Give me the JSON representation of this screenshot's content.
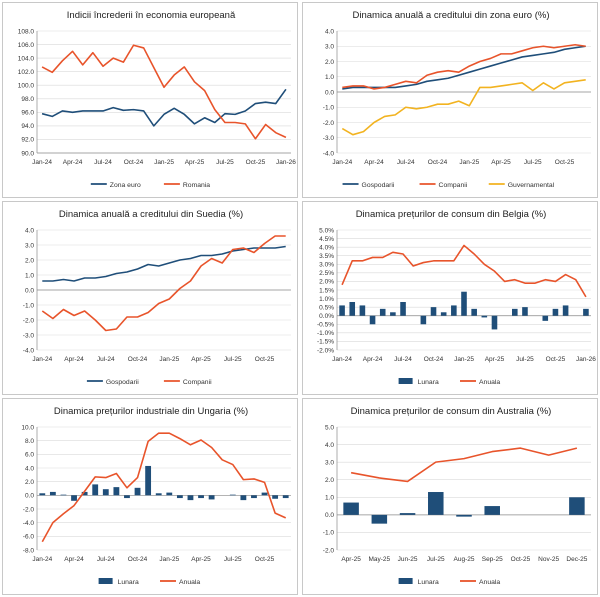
{
  "colors": {
    "navy": "#1f4e79",
    "orange": "#e8542b",
    "gold": "#f2b320",
    "grid": "#d9d9d9",
    "axis": "#8c8c8c"
  },
  "chart_data": [
    {
      "id": "c1",
      "type": "line",
      "title": "Indicii încrederii în economia europeană",
      "ylim": [
        90,
        108
      ],
      "yticks": [
        90,
        92,
        94,
        96,
        98,
        100,
        102,
        104,
        106,
        108
      ],
      "ydec": 1,
      "categories": [
        "Jan-24",
        "Feb-24",
        "Mar-24",
        "Apr-24",
        "May-24",
        "Jun-24",
        "Jul-24",
        "Aug-24",
        "Sep-24",
        "Oct-24",
        "Nov-24",
        "Dec-24",
        "Jan-25",
        "Feb-25",
        "Mar-25",
        "Apr-25",
        "May-25",
        "Jun-25",
        "Jul-25",
        "Aug-25",
        "Sep-25",
        "Oct-25",
        "Nov-25",
        "Dec-25",
        "Jan-26"
      ],
      "xlabels": [
        "Jan-24",
        "Apr-24",
        "Jul-24",
        "Oct-24",
        "Jan-25",
        "Apr-25",
        "Jul-25",
        "Oct-25",
        "Jan-26"
      ],
      "legend": "bottom",
      "series": [
        {
          "name": "Zona euro",
          "kind": "line",
          "color": "navy",
          "values": [
            95.8,
            95.4,
            96.2,
            96.0,
            96.2,
            96.2,
            96.2,
            96.7,
            96.3,
            96.4,
            96.2,
            94.0,
            95.7,
            96.6,
            95.7,
            94.3,
            95.2,
            94.5,
            95.8,
            95.7,
            96.2,
            97.3,
            97.5,
            97.3,
            99.4
          ]
        },
        {
          "name": "Romania",
          "kind": "line",
          "color": "orange",
          "values": [
            102.7,
            101.9,
            103.6,
            105.0,
            103.0,
            104.8,
            102.8,
            104.0,
            103.4,
            105.9,
            105.5,
            102.6,
            99.7,
            101.5,
            102.7,
            100.5,
            99.2,
            96.4,
            94.5,
            94.5,
            94.3,
            92.1,
            94.2,
            93.0,
            92.3
          ]
        }
      ]
    },
    {
      "id": "c2",
      "type": "line",
      "title": "Dinamica anuală a creditului din zona euro (%)",
      "ylim": [
        -4,
        4
      ],
      "yticks": [
        -4,
        -3,
        -2,
        -1,
        0,
        1,
        2,
        3,
        4
      ],
      "ydec": 1,
      "categories": [
        "Jan-24",
        "Feb-24",
        "Mar-24",
        "Apr-24",
        "May-24",
        "Jun-24",
        "Jul-24",
        "Aug-24",
        "Sep-24",
        "Oct-24",
        "Nov-24",
        "Dec-24",
        "Jan-25",
        "Feb-25",
        "Mar-25",
        "Apr-25",
        "May-25",
        "Jun-25",
        "Jul-25",
        "Aug-25",
        "Sep-25",
        "Oct-25",
        "Nov-25",
        "Dec-25"
      ],
      "xlabels": [
        "Jan-24",
        "Apr-24",
        "Jul-24",
        "Oct-24",
        "Jan-25",
        "Apr-25",
        "Jul-25",
        "Oct-25"
      ],
      "legend": "bottom",
      "series": [
        {
          "name": "Gospodarii",
          "kind": "line",
          "color": "navy",
          "values": [
            0.2,
            0.3,
            0.3,
            0.3,
            0.3,
            0.3,
            0.4,
            0.5,
            0.7,
            0.8,
            0.9,
            1.1,
            1.3,
            1.5,
            1.7,
            1.9,
            2.1,
            2.3,
            2.4,
            2.5,
            2.6,
            2.8,
            2.9,
            3.0
          ]
        },
        {
          "name": "Companii",
          "kind": "line",
          "color": "orange",
          "values": [
            0.3,
            0.4,
            0.4,
            0.2,
            0.3,
            0.5,
            0.7,
            0.6,
            1.1,
            1.3,
            1.4,
            1.3,
            1.7,
            2.0,
            2.2,
            2.5,
            2.5,
            2.7,
            2.9,
            3.0,
            2.9,
            3.0,
            3.1,
            3.0
          ]
        },
        {
          "name": "Guvernamental",
          "kind": "line",
          "color": "gold",
          "values": [
            -2.4,
            -2.8,
            -2.6,
            -2.0,
            -1.6,
            -1.5,
            -1.0,
            -1.1,
            -1.0,
            -0.8,
            -0.8,
            -0.6,
            -0.9,
            0.3,
            0.3,
            0.4,
            0.5,
            0.6,
            0.1,
            0.6,
            0.2,
            0.6,
            0.7,
            0.8
          ]
        }
      ]
    },
    {
      "id": "c3",
      "type": "line",
      "title": "Dinamica anuală a creditului din Suedia (%)",
      "ylim": [
        -4,
        4
      ],
      "yticks": [
        -4,
        -3,
        -2,
        -1,
        0,
        1,
        2,
        3,
        4
      ],
      "ydec": 1,
      "categories": [
        "Jan-24",
        "Feb-24",
        "Mar-24",
        "Apr-24",
        "May-24",
        "Jun-24",
        "Jul-24",
        "Aug-24",
        "Sep-24",
        "Oct-24",
        "Nov-24",
        "Dec-24",
        "Jan-25",
        "Feb-25",
        "Mar-25",
        "Apr-25",
        "May-25",
        "Jun-25",
        "Jul-25",
        "Aug-25",
        "Sep-25",
        "Oct-25",
        "Nov-25",
        "Dec-25"
      ],
      "xlabels": [
        "Jan-24",
        "Apr-24",
        "Jul-24",
        "Oct-24",
        "Jan-25",
        "Apr-25",
        "Jul-25",
        "Oct-25"
      ],
      "legend": "bottom",
      "series": [
        {
          "name": "Gospodarii",
          "kind": "line",
          "color": "navy",
          "values": [
            0.6,
            0.6,
            0.7,
            0.6,
            0.8,
            0.8,
            0.9,
            1.1,
            1.2,
            1.4,
            1.7,
            1.6,
            1.8,
            2.0,
            2.1,
            2.3,
            2.3,
            2.4,
            2.6,
            2.7,
            2.8,
            2.8,
            2.8,
            2.9
          ]
        },
        {
          "name": "Companii",
          "kind": "line",
          "color": "orange",
          "values": [
            -1.4,
            -1.9,
            -1.3,
            -1.7,
            -1.4,
            -2.0,
            -2.7,
            -2.6,
            -1.8,
            -1.8,
            -1.5,
            -0.9,
            -0.6,
            0.1,
            0.6,
            1.6,
            2.1,
            1.8,
            2.7,
            2.8,
            2.5,
            3.1,
            3.6,
            3.6
          ]
        }
      ]
    },
    {
      "id": "c4",
      "type": "bar+line",
      "title": "Dinamica prețurilor de consum din Belgia (%)",
      "ylim": [
        -2,
        5
      ],
      "yticks": [
        -2,
        -1.5,
        -1,
        -0.5,
        0,
        0.5,
        1,
        1.5,
        2,
        2.5,
        3,
        3.5,
        4,
        4.5,
        5
      ],
      "ydec": 1,
      "ysuffix": "%",
      "categories": [
        "Jan-24",
        "Feb-24",
        "Mar-24",
        "Apr-24",
        "May-24",
        "Jun-24",
        "Jul-24",
        "Aug-24",
        "Sep-24",
        "Oct-24",
        "Nov-24",
        "Dec-24",
        "Jan-25",
        "Feb-25",
        "Mar-25",
        "Apr-25",
        "May-25",
        "Jun-25",
        "Jul-25",
        "Aug-25",
        "Sep-25",
        "Oct-25",
        "Nov-25",
        "Dec-25",
        "Jan-26"
      ],
      "xlabels": [
        "Jan-24",
        "Apr-24",
        "Jul-24",
        "Oct-24",
        "Jan-25",
        "Apr-25",
        "Jul-25",
        "Oct-25",
        "Jan-26"
      ],
      "legend": "bottom",
      "series": [
        {
          "name": "Lunara",
          "kind": "bar",
          "color": "navy",
          "values": [
            0.6,
            0.8,
            0.6,
            -0.5,
            0.4,
            0.2,
            0.8,
            0.0,
            -0.5,
            0.5,
            0.2,
            0.6,
            1.4,
            0.4,
            -0.1,
            -0.8,
            0.0,
            0.4,
            0.5,
            0.0,
            -0.3,
            0.4,
            0.6,
            0.0,
            0.4
          ]
        },
        {
          "name": "Anuala",
          "kind": "line",
          "color": "orange",
          "values": [
            1.8,
            3.2,
            3.2,
            3.4,
            3.4,
            3.7,
            3.6,
            2.9,
            3.1,
            3.2,
            3.2,
            3.2,
            4.1,
            3.6,
            3.0,
            2.6,
            2.0,
            2.1,
            1.9,
            1.9,
            2.1,
            2.0,
            2.4,
            2.1,
            1.1
          ]
        }
      ]
    },
    {
      "id": "c5",
      "type": "bar+line",
      "title": "Dinamica prețurilor industriale din Ungaria (%)",
      "ylim": [
        -8,
        10
      ],
      "yticks": [
        -8,
        -6,
        -4,
        -2,
        0,
        2,
        4,
        6,
        8,
        10
      ],
      "ydec": 1,
      "categories": [
        "Jan-24",
        "Feb-24",
        "Mar-24",
        "Apr-24",
        "May-24",
        "Jun-24",
        "Jul-24",
        "Aug-24",
        "Sep-24",
        "Oct-24",
        "Nov-24",
        "Dec-24",
        "Jan-25",
        "Feb-25",
        "Mar-25",
        "Apr-25",
        "May-25",
        "Jun-25",
        "Jul-25",
        "Aug-25",
        "Sep-25",
        "Oct-25",
        "Nov-25",
        "Dec-25"
      ],
      "xlabels": [
        "Jan-24",
        "Apr-24",
        "Jul-24",
        "Oct-24",
        "Jan-25",
        "Apr-25",
        "Jul-25",
        "Oct-25"
      ],
      "legend": "bottom",
      "series": [
        {
          "name": "Lunara",
          "kind": "bar",
          "color": "navy",
          "values": [
            0.3,
            0.5,
            0.1,
            -0.8,
            0.5,
            1.6,
            0.9,
            1.2,
            -0.4,
            1.1,
            4.3,
            0.3,
            0.4,
            -0.4,
            -0.7,
            -0.4,
            -0.6,
            0.0,
            0.1,
            -0.7,
            -0.4,
            0.4,
            -0.5,
            -0.4
          ]
        },
        {
          "name": "Anuala",
          "kind": "line",
          "color": "orange",
          "values": [
            -6.8,
            -4.0,
            -2.7,
            -1.5,
            0.6,
            2.7,
            2.6,
            3.2,
            1.1,
            2.6,
            7.9,
            9.1,
            9.1,
            8.3,
            7.4,
            8.1,
            7.0,
            5.2,
            4.5,
            2.3,
            2.4,
            1.9,
            -2.6,
            -3.3
          ]
        }
      ]
    },
    {
      "id": "c6",
      "type": "bar+line",
      "title": "Dinamica prețurilor de consum din Australia (%)",
      "ylim": [
        -2,
        5
      ],
      "yticks": [
        -2,
        -1,
        0,
        1,
        2,
        3,
        4,
        5
      ],
      "ydec": 1,
      "categories": [
        "Apr-25",
        "May-25",
        "Jun-25",
        "Jul-25",
        "Aug-25",
        "Sep-25",
        "Oct-25",
        "Nov-25",
        "Dec-25"
      ],
      "xlabels": [
        "Apr-25",
        "May-25",
        "Jun-25",
        "Jul-25",
        "Aug-25",
        "Sep-25",
        "Oct-25",
        "Nov-25",
        "Dec-25"
      ],
      "legend": "bottom",
      "series": [
        {
          "name": "Lunara",
          "kind": "bar",
          "color": "navy",
          "values": [
            0.7,
            -0.5,
            0.1,
            1.3,
            -0.1,
            0.5,
            0.0,
            0.0,
            1.0
          ]
        },
        {
          "name": "Anuala",
          "kind": "line",
          "color": "orange",
          "values": [
            2.4,
            2.1,
            1.9,
            3.0,
            3.2,
            3.6,
            3.8,
            3.4,
            3.8
          ]
        }
      ]
    }
  ]
}
